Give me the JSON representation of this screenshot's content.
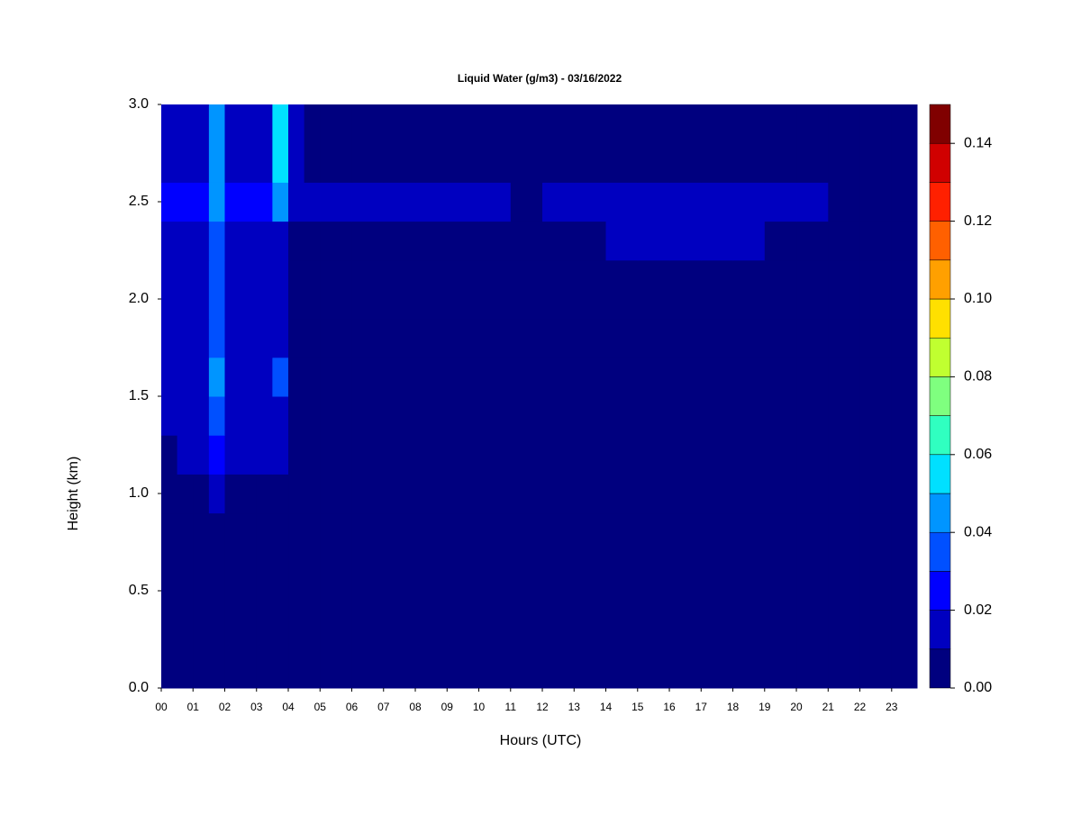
{
  "chart_data": {
    "type": "heatmap",
    "title": "Liquid Water (g/m3) - 03/16/2022",
    "x_label": "Hours (UTC)",
    "y_label": "Height (km)",
    "xlim": [
      0,
      23.8
    ],
    "ylim": [
      0,
      3
    ],
    "xticks": [
      {
        "value": 0,
        "label": "00"
      },
      {
        "value": 1,
        "label": "01"
      },
      {
        "value": 2,
        "label": "02"
      },
      {
        "value": 3,
        "label": "03"
      },
      {
        "value": 4,
        "label": "04"
      },
      {
        "value": 5,
        "label": "05"
      },
      {
        "value": 6,
        "label": "06"
      },
      {
        "value": 7,
        "label": "07"
      },
      {
        "value": 8,
        "label": "08"
      },
      {
        "value": 9,
        "label": "09"
      },
      {
        "value": 10,
        "label": "10"
      },
      {
        "value": 11,
        "label": "11"
      },
      {
        "value": 12,
        "label": "12"
      },
      {
        "value": 13,
        "label": "13"
      },
      {
        "value": 14,
        "label": "14"
      },
      {
        "value": 15,
        "label": "15"
      },
      {
        "value": 16,
        "label": "16"
      },
      {
        "value": 17,
        "label": "17"
      },
      {
        "value": 18,
        "label": "18"
      },
      {
        "value": 19,
        "label": "19"
      },
      {
        "value": 20,
        "label": "20"
      },
      {
        "value": 21,
        "label": "21"
      },
      {
        "value": 22,
        "label": "22"
      },
      {
        "value": 23,
        "label": "23"
      }
    ],
    "yticks": [
      {
        "value": 0,
        "label": "0.0"
      },
      {
        "value": 0.5,
        "label": "0.5"
      },
      {
        "value": 1,
        "label": "1.0"
      },
      {
        "value": 1.5,
        "label": "1.5"
      },
      {
        "value": 2,
        "label": "2.0"
      },
      {
        "value": 2.5,
        "label": "2.5"
      },
      {
        "value": 3,
        "label": "3.0"
      }
    ],
    "x_edges": [
      0,
      0.5,
      1,
      1.5,
      2,
      2.5,
      3,
      3.5,
      4,
      4.5,
      5,
      6,
      7,
      8,
      9,
      10,
      11,
      12,
      13,
      14,
      15,
      16,
      17,
      18,
      19,
      20,
      21,
      22,
      23,
      23.8
    ],
    "y_edges": [
      0,
      0.9,
      1.1,
      1.3,
      1.5,
      1.7,
      1.9,
      2.2,
      2.4,
      2.6,
      3
    ],
    "z": [
      [
        0.005,
        0.005,
        0.005,
        0.005,
        0.005,
        0.005,
        0.005,
        0.005,
        0.005,
        0.005,
        0.005,
        0.005,
        0.005,
        0.005,
        0.005,
        0.005,
        0.005,
        0.005,
        0.005,
        0.005,
        0.005,
        0.005,
        0.005,
        0.005,
        0.005,
        0.005,
        0.005,
        0.005,
        0.005
      ],
      [
        0.005,
        0.005,
        0.005,
        0.015,
        0.005,
        0.005,
        0.005,
        0.005,
        0.005,
        0.005,
        0.005,
        0.005,
        0.005,
        0.005,
        0.005,
        0.005,
        0.005,
        0.005,
        0.005,
        0.005,
        0.005,
        0.005,
        0.005,
        0.005,
        0.005,
        0.005,
        0.005,
        0.005,
        0.005
      ],
      [
        0.005,
        0.012,
        0.012,
        0.02,
        0.012,
        0.012,
        0.012,
        0.012,
        0.005,
        0.005,
        0.005,
        0.005,
        0.005,
        0.005,
        0.005,
        0.005,
        0.005,
        0.005,
        0.005,
        0.005,
        0.005,
        0.005,
        0.005,
        0.005,
        0.005,
        0.005,
        0.005,
        0.005,
        0.005
      ],
      [
        0.015,
        0.015,
        0.015,
        0.03,
        0.015,
        0.015,
        0.015,
        0.015,
        0.005,
        0.005,
        0.005,
        0.005,
        0.005,
        0.005,
        0.005,
        0.005,
        0.005,
        0.005,
        0.005,
        0.005,
        0.005,
        0.005,
        0.005,
        0.005,
        0.005,
        0.005,
        0.005,
        0.005,
        0.005
      ],
      [
        0.018,
        0.018,
        0.018,
        0.04,
        0.018,
        0.018,
        0.018,
        0.03,
        0.005,
        0.005,
        0.005,
        0.005,
        0.005,
        0.005,
        0.005,
        0.005,
        0.005,
        0.005,
        0.005,
        0.005,
        0.005,
        0.005,
        0.005,
        0.005,
        0.005,
        0.005,
        0.005,
        0.005,
        0.005
      ],
      [
        0.012,
        0.012,
        0.012,
        0.03,
        0.012,
        0.012,
        0.012,
        0.012,
        0.005,
        0.005,
        0.005,
        0.005,
        0.005,
        0.005,
        0.005,
        0.005,
        0.005,
        0.005,
        0.005,
        0.005,
        0.005,
        0.005,
        0.005,
        0.005,
        0.005,
        0.005,
        0.005,
        0.005,
        0.005
      ],
      [
        0.012,
        0.012,
        0.012,
        0.03,
        0.012,
        0.012,
        0.012,
        0.012,
        0.005,
        0.005,
        0.005,
        0.005,
        0.005,
        0.005,
        0.005,
        0.005,
        0.005,
        0.005,
        0.005,
        0.005,
        0.005,
        0.005,
        0.005,
        0.005,
        0.005,
        0.005,
        0.005,
        0.005,
        0.005
      ],
      [
        0.015,
        0.015,
        0.015,
        0.035,
        0.015,
        0.015,
        0.015,
        0.015,
        0.005,
        0.005,
        0.005,
        0.005,
        0.005,
        0.005,
        0.005,
        0.005,
        0.005,
        0.005,
        0.005,
        0.015,
        0.015,
        0.015,
        0.015,
        0.015,
        0.005,
        0.005,
        0.005,
        0.005,
        0.005
      ],
      [
        0.02,
        0.02,
        0.02,
        0.04,
        0.02,
        0.02,
        0.02,
        0.045,
        0.018,
        0.018,
        0.012,
        0.012,
        0.012,
        0.012,
        0.012,
        0.012,
        0.008,
        0.015,
        0.015,
        0.018,
        0.018,
        0.018,
        0.018,
        0.018,
        0.015,
        0.012,
        0.005,
        0.005,
        0.005
      ],
      [
        0.015,
        0.015,
        0.015,
        0.045,
        0.015,
        0.015,
        0.015,
        0.055,
        0.01,
        0.005,
        0.005,
        0.005,
        0.005,
        0.005,
        0.005,
        0.005,
        0.005,
        0.005,
        0.005,
        0.005,
        0.005,
        0.005,
        0.005,
        0.005,
        0.005,
        0.005,
        0.005,
        0.005,
        0.005
      ]
    ],
    "levels": [
      0,
      0.01,
      0.02,
      0.03,
      0.04,
      0.05,
      0.06,
      0.07,
      0.08,
      0.09,
      0.1,
      0.11,
      0.12,
      0.13,
      0.14,
      0.15
    ],
    "colors": [
      "#00007f",
      "#0000c0",
      "#0000ff",
      "#0050ff",
      "#0095ff",
      "#00e0ff",
      "#30ffc0",
      "#7fff7f",
      "#c0ff30",
      "#ffe000",
      "#ffa000",
      "#ff6000",
      "#ff2000",
      "#d00000",
      "#800000"
    ],
    "cticks": [
      {
        "value": 0,
        "label": "0.00"
      },
      {
        "value": 0.02,
        "label": "0.02"
      },
      {
        "value": 0.04,
        "label": "0.04"
      },
      {
        "value": 0.06,
        "label": "0.06"
      },
      {
        "value": 0.08,
        "label": "0.08"
      },
      {
        "value": 0.1,
        "label": "0.10"
      },
      {
        "value": 0.12,
        "label": "0.12"
      },
      {
        "value": 0.14,
        "label": "0.14"
      }
    ]
  }
}
